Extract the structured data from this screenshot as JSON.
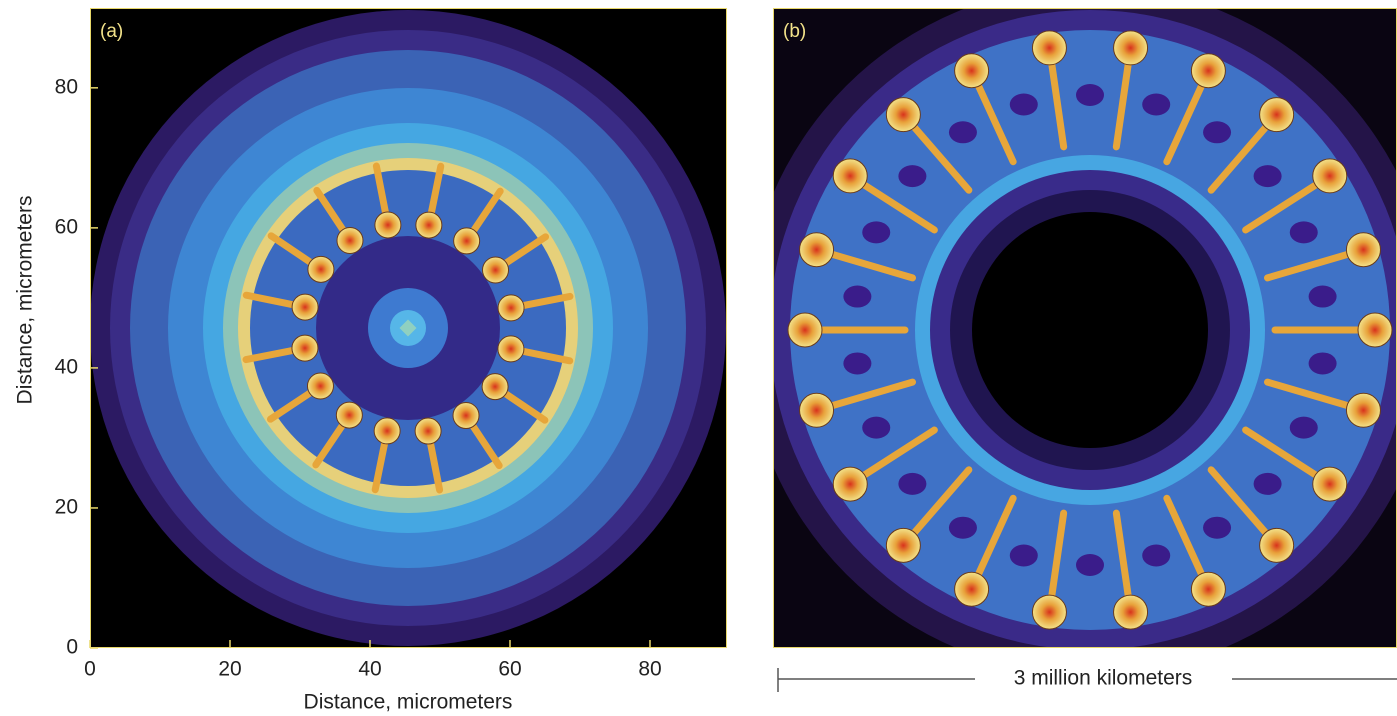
{
  "chart_data": [
    {
      "type": "contour",
      "panel_label": "(a)",
      "xlabel": "Distance, micrometers",
      "ylabel": "Distance, micrometers",
      "xlim": [
        0,
        91
      ],
      "ylim": [
        0,
        91.4
      ],
      "xticks": [
        0,
        20,
        40,
        60,
        80
      ],
      "yticks": [
        0,
        20,
        40,
        60,
        80
      ]
    },
    {
      "type": "image",
      "panel_label": "(b)",
      "scale_bar_label": "3 million kilometers"
    }
  ]
}
